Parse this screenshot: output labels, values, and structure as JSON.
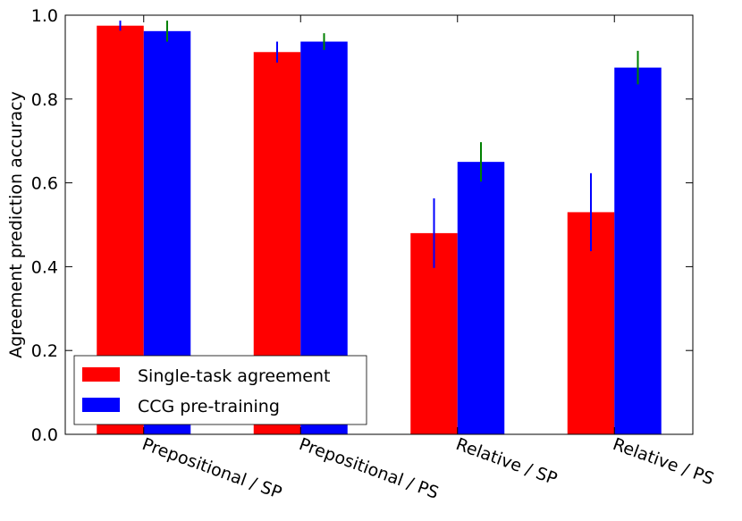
{
  "chart_data": {
    "type": "bar",
    "title": "",
    "xlabel": "",
    "ylabel": "Agreement prediction accuracy",
    "ylim": [
      0,
      1.0
    ],
    "yticks": [
      "0.0",
      "0.2",
      "0.4",
      "0.6",
      "0.8",
      "1.0"
    ],
    "grid": false,
    "legend_position": "bottom-left",
    "categories": [
      "Prepositional / SP",
      "Prepositional / PS",
      "Relative / SP",
      "Relative / PS"
    ],
    "series": [
      {
        "name": "Single-task agreement",
        "color": "#ff0000",
        "error_color": "#0000ff",
        "values": [
          0.975,
          0.912,
          0.48,
          0.53
        ],
        "errors": [
          0.012,
          0.025,
          0.083,
          0.093
        ]
      },
      {
        "name": "CCG pre-training",
        "color": "#0000ff",
        "error_color": "#008000",
        "values": [
          0.962,
          0.937,
          0.65,
          0.875
        ],
        "errors": [
          0.025,
          0.02,
          0.047,
          0.04
        ]
      }
    ]
  }
}
